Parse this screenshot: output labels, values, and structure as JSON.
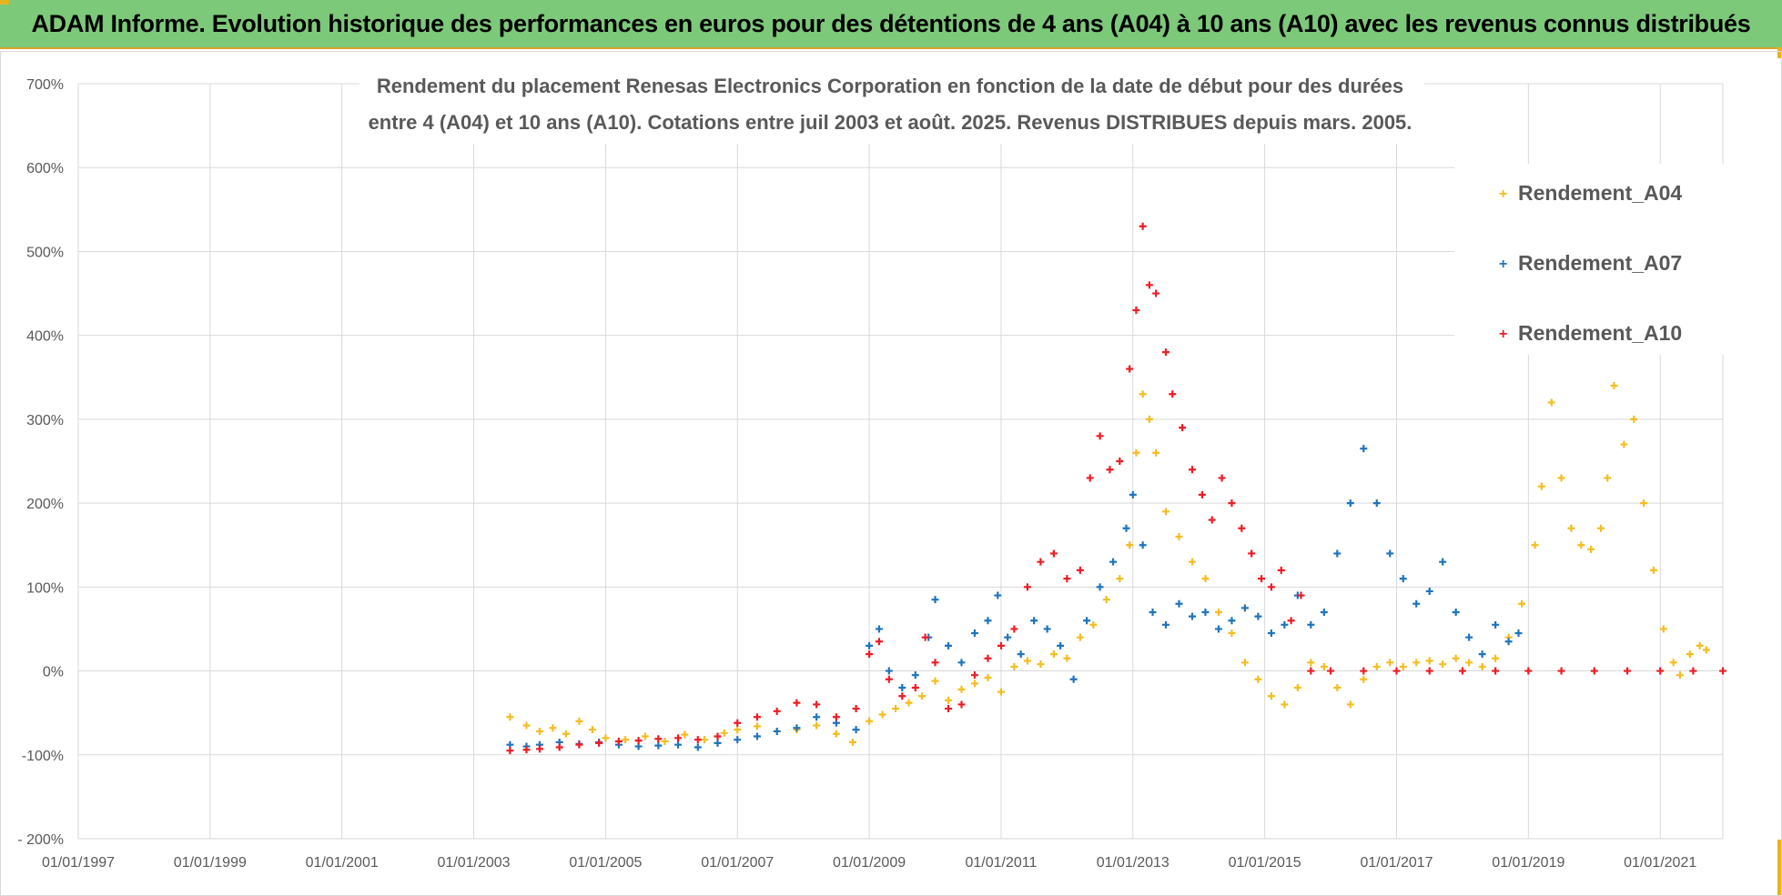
{
  "header": {
    "title": "ADAM Informe. Evolution historique des performances en euros pour des détentions de 4 ans (A04) à 10 ans (A10) avec les revenus connus distribués"
  },
  "chart_data": {
    "type": "scatter",
    "title_lines": [
      "Rendement du placement Renesas Electronics Corporation en fonction de la date de début pour des durées",
      "entre 4 (A04) et 10 ans (A10).  Cotations entre juil 2003 et août. 2025.  Revenus DISTRIBUES depuis mars. 2005."
    ],
    "xlabel": "",
    "ylabel": "",
    "x_ticks": [
      "01/01/1997",
      "01/01/1999",
      "01/01/2001",
      "01/01/2003",
      "01/01/2005",
      "01/01/2007",
      "01/01/2009",
      "01/01/2011",
      "01/01/2013",
      "01/01/2015",
      "01/01/2017",
      "01/01/2019",
      "01/01/2021"
    ],
    "xlim": [
      1997.0,
      2021.95
    ],
    "y_ticks": [
      "- 200%",
      "-100%",
      "0%",
      "100%",
      "200%",
      "300%",
      "400%",
      "500%",
      "600%",
      "700%"
    ],
    "ylim": [
      -200,
      700
    ],
    "grid": true,
    "legend_position": "top-right",
    "series": [
      {
        "name": "Rendement_A04",
        "color": "#f5bd1f",
        "points": [
          [
            2003.55,
            -55
          ],
          [
            2003.8,
            -65
          ],
          [
            2004.0,
            -72
          ],
          [
            2004.2,
            -68
          ],
          [
            2004.4,
            -75
          ],
          [
            2004.6,
            -60
          ],
          [
            2004.8,
            -70
          ],
          [
            2005.0,
            -80
          ],
          [
            2005.3,
            -82
          ],
          [
            2005.6,
            -78
          ],
          [
            2005.9,
            -84
          ],
          [
            2006.2,
            -76
          ],
          [
            2006.5,
            -82
          ],
          [
            2006.8,
            -74
          ],
          [
            2007.0,
            -70
          ],
          [
            2007.3,
            -66
          ],
          [
            2007.6,
            -72
          ],
          [
            2007.9,
            -70
          ],
          [
            2008.2,
            -65
          ],
          [
            2008.5,
            -75
          ],
          [
            2008.75,
            -85
          ],
          [
            2009.0,
            -60
          ],
          [
            2009.2,
            -52
          ],
          [
            2009.4,
            -45
          ],
          [
            2009.6,
            -38
          ],
          [
            2009.8,
            -30
          ],
          [
            2010.0,
            -12
          ],
          [
            2010.2,
            -35
          ],
          [
            2010.4,
            -22
          ],
          [
            2010.6,
            -15
          ],
          [
            2010.8,
            -8
          ],
          [
            2011.0,
            -25
          ],
          [
            2011.2,
            5
          ],
          [
            2011.4,
            12
          ],
          [
            2011.6,
            8
          ],
          [
            2011.8,
            20
          ],
          [
            2012.0,
            15
          ],
          [
            2012.2,
            40
          ],
          [
            2012.4,
            55
          ],
          [
            2012.6,
            85
          ],
          [
            2012.8,
            110
          ],
          [
            2012.95,
            150
          ],
          [
            2013.05,
            260
          ],
          [
            2013.15,
            330
          ],
          [
            2013.25,
            300
          ],
          [
            2013.35,
            260
          ],
          [
            2013.5,
            190
          ],
          [
            2013.7,
            160
          ],
          [
            2013.9,
            130
          ],
          [
            2014.1,
            110
          ],
          [
            2014.3,
            70
          ],
          [
            2014.5,
            45
          ],
          [
            2014.7,
            10
          ],
          [
            2014.9,
            -10
          ],
          [
            2015.1,
            -30
          ],
          [
            2015.3,
            -40
          ],
          [
            2015.5,
            -20
          ],
          [
            2015.7,
            10
          ],
          [
            2015.9,
            5
          ],
          [
            2016.1,
            -20
          ],
          [
            2016.3,
            -40
          ],
          [
            2016.5,
            -10
          ],
          [
            2016.7,
            5
          ],
          [
            2016.9,
            10
          ],
          [
            2017.1,
            5
          ],
          [
            2017.3,
            10
          ],
          [
            2017.5,
            12
          ],
          [
            2017.7,
            8
          ],
          [
            2017.9,
            15
          ],
          [
            2018.1,
            10
          ],
          [
            2018.3,
            5
          ],
          [
            2018.5,
            15
          ],
          [
            2018.7,
            40
          ],
          [
            2018.9,
            80
          ],
          [
            2019.1,
            150
          ],
          [
            2019.2,
            220
          ],
          [
            2019.35,
            320
          ],
          [
            2019.5,
            230
          ],
          [
            2019.65,
            170
          ],
          [
            2019.8,
            150
          ],
          [
            2019.95,
            145
          ],
          [
            2020.1,
            170
          ],
          [
            2020.2,
            230
          ],
          [
            2020.3,
            340
          ],
          [
            2020.45,
            270
          ],
          [
            2020.6,
            300
          ],
          [
            2020.75,
            200
          ],
          [
            2020.9,
            120
          ],
          [
            2021.05,
            50
          ],
          [
            2021.2,
            10
          ],
          [
            2021.3,
            -5
          ],
          [
            2021.45,
            20
          ],
          [
            2021.6,
            30
          ],
          [
            2021.7,
            25
          ]
        ]
      },
      {
        "name": "Rendement_A07",
        "color": "#1f74bd",
        "points": [
          [
            2003.55,
            -88
          ],
          [
            2003.8,
            -90
          ],
          [
            2004.0,
            -88
          ],
          [
            2004.3,
            -85
          ],
          [
            2004.6,
            -87
          ],
          [
            2004.9,
            -85
          ],
          [
            2005.2,
            -88
          ],
          [
            2005.5,
            -90
          ],
          [
            2005.8,
            -89
          ],
          [
            2006.1,
            -88
          ],
          [
            2006.4,
            -91
          ],
          [
            2006.7,
            -86
          ],
          [
            2007.0,
            -82
          ],
          [
            2007.3,
            -78
          ],
          [
            2007.6,
            -72
          ],
          [
            2007.9,
            -68
          ],
          [
            2008.2,
            -55
          ],
          [
            2008.5,
            -62
          ],
          [
            2008.8,
            -70
          ],
          [
            2009.0,
            30
          ],
          [
            2009.15,
            50
          ],
          [
            2009.3,
            0
          ],
          [
            2009.5,
            -20
          ],
          [
            2009.7,
            -5
          ],
          [
            2009.9,
            40
          ],
          [
            2010.0,
            85
          ],
          [
            2010.2,
            30
          ],
          [
            2010.4,
            10
          ],
          [
            2010.6,
            45
          ],
          [
            2010.8,
            60
          ],
          [
            2010.95,
            90
          ],
          [
            2011.1,
            40
          ],
          [
            2011.3,
            20
          ],
          [
            2011.5,
            60
          ],
          [
            2011.7,
            50
          ],
          [
            2011.9,
            30
          ],
          [
            2012.1,
            -10
          ],
          [
            2012.3,
            60
          ],
          [
            2012.5,
            100
          ],
          [
            2012.7,
            130
          ],
          [
            2012.9,
            170
          ],
          [
            2013.0,
            210
          ],
          [
            2013.15,
            150
          ],
          [
            2013.3,
            70
          ],
          [
            2013.5,
            55
          ],
          [
            2013.7,
            80
          ],
          [
            2013.9,
            65
          ],
          [
            2014.1,
            70
          ],
          [
            2014.3,
            50
          ],
          [
            2014.5,
            60
          ],
          [
            2014.7,
            75
          ],
          [
            2014.9,
            65
          ],
          [
            2015.1,
            45
          ],
          [
            2015.3,
            55
          ],
          [
            2015.5,
            90
          ],
          [
            2015.7,
            55
          ],
          [
            2015.9,
            70
          ],
          [
            2016.1,
            140
          ],
          [
            2016.3,
            200
          ],
          [
            2016.5,
            265
          ],
          [
            2016.7,
            200
          ],
          [
            2016.9,
            140
          ],
          [
            2017.1,
            110
          ],
          [
            2017.3,
            80
          ],
          [
            2017.5,
            95
          ],
          [
            2017.7,
            130
          ],
          [
            2017.9,
            70
          ],
          [
            2018.1,
            40
          ],
          [
            2018.3,
            20
          ],
          [
            2018.5,
            55
          ],
          [
            2018.7,
            35
          ],
          [
            2018.85,
            45
          ]
        ]
      },
      {
        "name": "Rendement_A10",
        "color": "#ee1c25",
        "points": [
          [
            2003.55,
            -95
          ],
          [
            2003.8,
            -94
          ],
          [
            2004.0,
            -93
          ],
          [
            2004.3,
            -91
          ],
          [
            2004.6,
            -88
          ],
          [
            2004.9,
            -86
          ],
          [
            2005.2,
            -84
          ],
          [
            2005.5,
            -83
          ],
          [
            2005.8,
            -81
          ],
          [
            2006.1,
            -80
          ],
          [
            2006.4,
            -82
          ],
          [
            2006.7,
            -78
          ],
          [
            2007.0,
            -62
          ],
          [
            2007.3,
            -55
          ],
          [
            2007.6,
            -48
          ],
          [
            2007.9,
            -38
          ],
          [
            2008.2,
            -40
          ],
          [
            2008.5,
            -55
          ],
          [
            2008.8,
            -45
          ],
          [
            2009.0,
            20
          ],
          [
            2009.15,
            35
          ],
          [
            2009.3,
            -10
          ],
          [
            2009.5,
            -30
          ],
          [
            2009.7,
            -20
          ],
          [
            2009.85,
            40
          ],
          [
            2010.0,
            10
          ],
          [
            2010.2,
            -45
          ],
          [
            2010.4,
            -40
          ],
          [
            2010.6,
            -5
          ],
          [
            2010.8,
            15
          ],
          [
            2011.0,
            30
          ],
          [
            2011.2,
            50
          ],
          [
            2011.4,
            100
          ],
          [
            2011.6,
            130
          ],
          [
            2011.8,
            140
          ],
          [
            2012.0,
            110
          ],
          [
            2012.2,
            120
          ],
          [
            2012.35,
            230
          ],
          [
            2012.5,
            280
          ],
          [
            2012.65,
            240
          ],
          [
            2012.8,
            250
          ],
          [
            2012.95,
            360
          ],
          [
            2013.05,
            430
          ],
          [
            2013.15,
            530
          ],
          [
            2013.25,
            460
          ],
          [
            2013.35,
            450
          ],
          [
            2013.5,
            380
          ],
          [
            2013.6,
            330
          ],
          [
            2013.75,
            290
          ],
          [
            2013.9,
            240
          ],
          [
            2014.05,
            210
          ],
          [
            2014.2,
            180
          ],
          [
            2014.35,
            230
          ],
          [
            2014.5,
            200
          ],
          [
            2014.65,
            170
          ],
          [
            2014.8,
            140
          ],
          [
            2014.95,
            110
          ],
          [
            2015.1,
            100
          ],
          [
            2015.25,
            120
          ],
          [
            2015.4,
            60
          ],
          [
            2015.55,
            90
          ],
          [
            2015.7,
            0
          ],
          [
            2016.0,
            0
          ],
          [
            2016.5,
            0
          ],
          [
            2017.0,
            0
          ],
          [
            2017.5,
            0
          ],
          [
            2018.0,
            0
          ],
          [
            2018.5,
            0
          ],
          [
            2019.0,
            0
          ],
          [
            2019.5,
            0
          ],
          [
            2020.0,
            0
          ],
          [
            2020.5,
            0
          ],
          [
            2021.0,
            0
          ],
          [
            2021.5,
            0
          ],
          [
            2021.95,
            0
          ]
        ]
      }
    ]
  }
}
